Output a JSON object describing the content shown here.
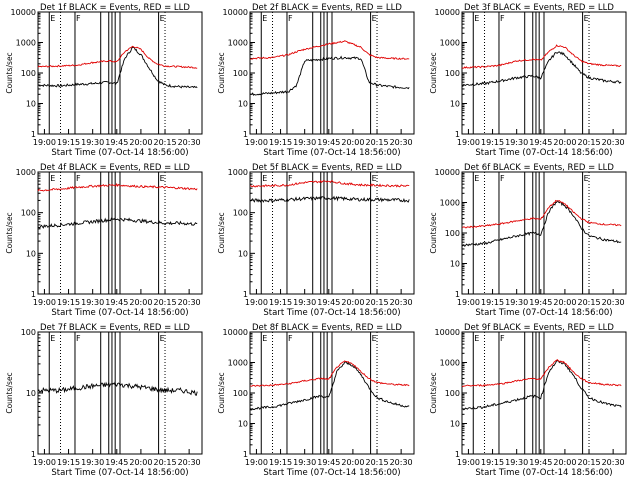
{
  "figure": {
    "x_title": "Start Time (07-Oct-14 18:56:00)",
    "y_title": "Counts/sec",
    "x_ticks": [
      "19:00",
      "19:15",
      "19:30",
      "19:45",
      "20:00",
      "20:15",
      "20:30"
    ],
    "x_range": [
      "18:56:00",
      "20:38:00"
    ],
    "y_scale": "log",
    "colors": {
      "events": "#000000",
      "lld": "#e00000"
    },
    "marker_labels": [
      "E",
      "F",
      "F",
      "F",
      "F",
      "F",
      "F",
      "E"
    ]
  },
  "chart_data": [
    {
      "type": "line",
      "title": "Det 1f BLACK = Events, RED = LLD",
      "xlabel": "Start Time (07-Oct-14 18:56:00)",
      "ylabel": "Counts/sec",
      "ylim": [
        1,
        10000
      ],
      "y_tick_labels": [
        "1",
        "10",
        "100",
        "1000",
        "10000"
      ],
      "x": [
        "18:56",
        "19:10",
        "19:20",
        "19:30",
        "19:40",
        "19:45",
        "19:50",
        "19:55",
        "20:00",
        "20:05",
        "20:10",
        "20:15",
        "20:25",
        "20:35"
      ],
      "series": [
        {
          "name": "Events",
          "values": [
            40,
            38,
            42,
            45,
            50,
            45,
            300,
            700,
            400,
            150,
            60,
            40,
            35,
            33
          ]
        },
        {
          "name": "LLD",
          "values": [
            160,
            170,
            180,
            220,
            250,
            230,
            500,
            750,
            600,
            300,
            200,
            170,
            160,
            150
          ]
        }
      ]
    },
    {
      "type": "line",
      "title": "Det 2f BLACK = Events, RED = LLD",
      "xlabel": "Start Time (07-Oct-14 18:56:00)",
      "ylabel": "Counts/sec",
      "ylim": [
        1,
        10000
      ],
      "y_tick_labels": [
        "1",
        "10",
        "100",
        "1000",
        "10000"
      ],
      "x": [
        "18:56",
        "19:10",
        "19:20",
        "19:25",
        "19:30",
        "19:45",
        "19:55",
        "20:05",
        "20:10",
        "20:15",
        "20:25",
        "20:35"
      ],
      "series": [
        {
          "name": "Events",
          "values": [
            20,
            22,
            25,
            40,
            250,
            300,
            320,
            300,
            50,
            40,
            35,
            33
          ]
        },
        {
          "name": "LLD",
          "values": [
            300,
            320,
            400,
            500,
            600,
            900,
            1100,
            700,
            400,
            320,
            300,
            290
          ]
        }
      ]
    },
    {
      "type": "line",
      "title": "Det 3f BLACK = Events, RED = LLD",
      "xlabel": "Start Time (07-Oct-14 18:56:00)",
      "ylabel": "Counts/sec",
      "ylim": [
        1,
        10000
      ],
      "y_tick_labels": [
        "1",
        "10",
        "100",
        "1000",
        "10000"
      ],
      "x": [
        "18:56",
        "19:10",
        "19:20",
        "19:30",
        "19:40",
        "19:45",
        "19:50",
        "19:55",
        "20:00",
        "20:05",
        "20:10",
        "20:15",
        "20:25",
        "20:35"
      ],
      "series": [
        {
          "name": "Events",
          "values": [
            40,
            45,
            55,
            70,
            80,
            70,
            250,
            500,
            400,
            200,
            100,
            70,
            55,
            50
          ]
        },
        {
          "name": "LLD",
          "values": [
            150,
            160,
            180,
            250,
            280,
            260,
            500,
            800,
            700,
            400,
            250,
            200,
            180,
            170
          ]
        }
      ]
    },
    {
      "type": "line",
      "title": "Det 4f BLACK = Events, RED = LLD",
      "xlabel": "Start Time (07-Oct-14 18:56:00)",
      "ylabel": "Counts/sec",
      "ylim": [
        1,
        1000
      ],
      "y_tick_labels": [
        "1",
        "10",
        "100",
        "1000"
      ],
      "x": [
        "18:56",
        "19:10",
        "19:20",
        "19:30",
        "19:45",
        "19:55",
        "20:05",
        "20:15",
        "20:25",
        "20:35"
      ],
      "series": [
        {
          "name": "Events",
          "values": [
            45,
            50,
            55,
            60,
            70,
            65,
            60,
            55,
            55,
            52
          ]
        },
        {
          "name": "LLD",
          "values": [
            350,
            380,
            420,
            450,
            480,
            450,
            430,
            420,
            400,
            380
          ]
        }
      ]
    },
    {
      "type": "line",
      "title": "Det 5f BLACK = Events, RED = LLD",
      "xlabel": "Start Time (07-Oct-14 18:56:00)",
      "ylabel": "Counts/sec",
      "ylim": [
        1,
        1000
      ],
      "y_tick_labels": [
        "1",
        "10",
        "100",
        "1000"
      ],
      "x": [
        "18:56",
        "19:10",
        "19:20",
        "19:30",
        "19:45",
        "19:55",
        "20:05",
        "20:15",
        "20:25",
        "20:35"
      ],
      "series": [
        {
          "name": "Events",
          "values": [
            200,
            200,
            210,
            220,
            230,
            220,
            210,
            210,
            205,
            200
          ]
        },
        {
          "name": "LLD",
          "values": [
            450,
            460,
            480,
            550,
            600,
            520,
            480,
            470,
            460,
            450
          ]
        }
      ]
    },
    {
      "type": "line",
      "title": "Det 6f BLACK = Events, RED = LLD",
      "xlabel": "Start Time (07-Oct-14 18:56:00)",
      "ylabel": "Counts/sec",
      "ylim": [
        1,
        10000
      ],
      "y_tick_labels": [
        "1",
        "10",
        "100",
        "1000",
        "10000"
      ],
      "x": [
        "18:56",
        "19:10",
        "19:20",
        "19:30",
        "19:40",
        "19:45",
        "19:50",
        "19:55",
        "20:00",
        "20:05",
        "20:10",
        "20:15",
        "20:25",
        "20:35"
      ],
      "series": [
        {
          "name": "Events",
          "values": [
            40,
            45,
            60,
            80,
            100,
            90,
            500,
            1100,
            800,
            400,
            150,
            80,
            60,
            50
          ]
        },
        {
          "name": "LLD",
          "values": [
            150,
            170,
            200,
            250,
            300,
            280,
            700,
            1200,
            900,
            500,
            300,
            220,
            190,
            180
          ]
        }
      ]
    },
    {
      "type": "line",
      "title": "Det 7f BLACK = Events, RED = LLD",
      "xlabel": "Start Time (07-Oct-14 18:56:00)",
      "ylabel": "Counts/sec",
      "ylim": [
        1,
        100
      ],
      "y_tick_labels": [
        "1",
        "10",
        "100"
      ],
      "x": [
        "18:56",
        "19:10",
        "19:20",
        "19:30",
        "19:45",
        "19:55",
        "20:05",
        "20:15",
        "20:25",
        "20:35"
      ],
      "series": [
        {
          "name": "Events",
          "values": [
            11,
            11,
            12,
            13,
            14,
            13,
            12,
            11,
            11,
            10
          ]
        }
      ]
    },
    {
      "type": "line",
      "title": "Det 8f BLACK = Events, RED = LLD",
      "xlabel": "Start Time (07-Oct-14 18:56:00)",
      "ylabel": "Counts/sec",
      "ylim": [
        1,
        10000
      ],
      "y_tick_labels": [
        "1",
        "10",
        "100",
        "1000",
        "10000"
      ],
      "x": [
        "18:56",
        "19:10",
        "19:20",
        "19:30",
        "19:40",
        "19:45",
        "19:50",
        "19:55",
        "20:00",
        "20:05",
        "20:10",
        "20:15",
        "20:25",
        "20:35"
      ],
      "series": [
        {
          "name": "Events",
          "values": [
            30,
            35,
            45,
            60,
            80,
            70,
            500,
            1000,
            800,
            400,
            150,
            70,
            45,
            35
          ]
        },
        {
          "name": "LLD",
          "values": [
            170,
            180,
            200,
            250,
            300,
            280,
            700,
            1100,
            900,
            500,
            300,
            220,
            190,
            180
          ]
        }
      ]
    },
    {
      "type": "line",
      "title": "Det 9f BLACK = Events, RED = LLD",
      "xlabel": "Start Time (07-Oct-14 18:56:00)",
      "ylabel": "Counts/sec",
      "ylim": [
        1,
        10000
      ],
      "y_tick_labels": [
        "1",
        "10",
        "100",
        "1000",
        "10000"
      ],
      "x": [
        "18:56",
        "19:10",
        "19:20",
        "19:30",
        "19:40",
        "19:45",
        "19:50",
        "19:55",
        "20:00",
        "20:05",
        "20:10",
        "20:15",
        "20:25",
        "20:35"
      ],
      "series": [
        {
          "name": "Events",
          "values": [
            30,
            35,
            45,
            60,
            80,
            70,
            500,
            1100,
            900,
            400,
            150,
            70,
            45,
            35
          ]
        },
        {
          "name": "LLD",
          "values": [
            170,
            180,
            200,
            250,
            300,
            280,
            700,
            1200,
            1000,
            500,
            300,
            220,
            190,
            180
          ]
        }
      ]
    }
  ]
}
